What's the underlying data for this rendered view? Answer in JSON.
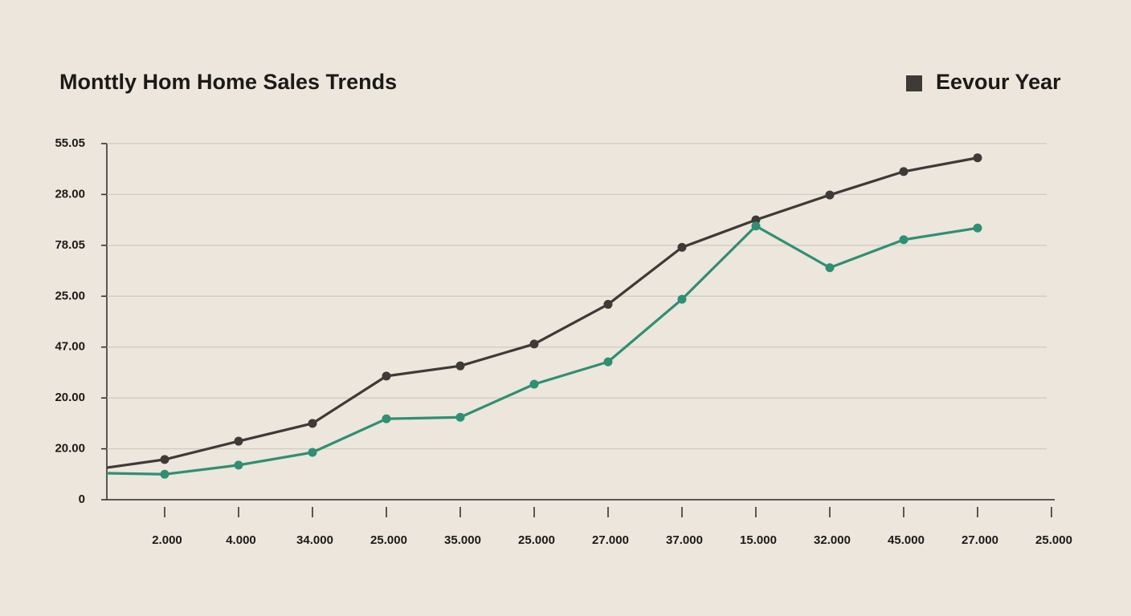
{
  "chart_data": {
    "type": "line",
    "title": "Monttly Hom Home Sales Trends",
    "categories": [
      null,
      "2.000",
      "4.000",
      "34.000",
      "25.000",
      "35.000",
      "25.000",
      "27.000",
      "37.000",
      "15.000",
      "32.000",
      "45.000",
      "27.000",
      "25.000"
    ],
    "series": [
      {
        "name": "Eevour Year",
        "color": "#3d3a37",
        "values": [
          0.63,
          0.79,
          1.15,
          1.5,
          2.43,
          2.63,
          3.06,
          3.84,
          4.96,
          5.5,
          5.99,
          6.45,
          6.72,
          null
        ]
      },
      {
        "color": "#2f8f72",
        "values": [
          0.52,
          0.5,
          0.68,
          0.93,
          1.59,
          1.62,
          2.27,
          2.71,
          3.94,
          5.38,
          4.56,
          5.11,
          5.34,
          null
        ]
      }
    ],
    "ylim": [
      0,
      7
    ],
    "yticks": [
      {
        "value": 0,
        "label": "0"
      },
      {
        "value": 1,
        "label": "20.00"
      },
      {
        "value": 2,
        "label": "20.00"
      },
      {
        "value": 3,
        "label": "47.00"
      },
      {
        "value": 4,
        "label": "25.00"
      },
      {
        "value": 5,
        "label": "78.05"
      },
      {
        "value": 6,
        "label": "28.00"
      },
      {
        "value": 7,
        "label": "55.05"
      }
    ],
    "grid": true,
    "legend": "top-right"
  }
}
